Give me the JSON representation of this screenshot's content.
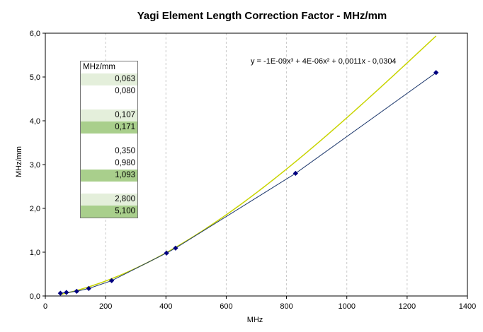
{
  "chart_data": {
    "type": "scatter",
    "title": "Yagi Element Length Correction Factor - MHz/mm",
    "xlabel": "MHz",
    "ylabel": "MHz/mm",
    "xlim": [
      0,
      1400
    ],
    "ylim": [
      0,
      6
    ],
    "x_ticks": [
      "0",
      "200",
      "400",
      "600",
      "800",
      "1000",
      "1200",
      "1400"
    ],
    "y_ticks": [
      "0,0",
      "1,0",
      "2,0",
      "3,0",
      "4,0",
      "5,0",
      "6,0"
    ],
    "grid": "vertical dashed",
    "legend": "none",
    "series": [
      {
        "x": [
          50,
          70,
          104,
          144,
          220,
          402,
          432,
          830,
          1296
        ],
        "y": [
          0.063,
          0.08,
          0.107,
          0.171,
          0.35,
          0.98,
          1.093,
          2.8,
          5.1
        ],
        "color": "#000080",
        "line_color": "#1f3a6e",
        "marker": "diamond"
      }
    ],
    "trendline": {
      "type": "polynomial",
      "order": 3,
      "coefficients": [
        -1e-09,
        4e-06,
        0.0011,
        -0.0304
      ],
      "equation_label": "y = -1E-09x³ + 4E-06x² + 0,0011x - 0,0304",
      "color": "#c8d400"
    },
    "table": {
      "header": "MHz/mm",
      "rows": [
        {
          "value": "0,063",
          "shade": "light"
        },
        {
          "value": "0,080",
          "shade": "white"
        },
        {
          "value": "",
          "shade": "white"
        },
        {
          "value": "0,107",
          "shade": "light"
        },
        {
          "value": "0,171",
          "shade": "dark"
        },
        {
          "value": "",
          "shade": "white"
        },
        {
          "value": "0,350",
          "shade": "white"
        },
        {
          "value": "0,980",
          "shade": "white"
        },
        {
          "value": "1,093",
          "shade": "dark"
        },
        {
          "value": "",
          "shade": "white"
        },
        {
          "value": "2,800",
          "shade": "light"
        },
        {
          "value": "5,100",
          "shade": "dark"
        }
      ]
    }
  }
}
